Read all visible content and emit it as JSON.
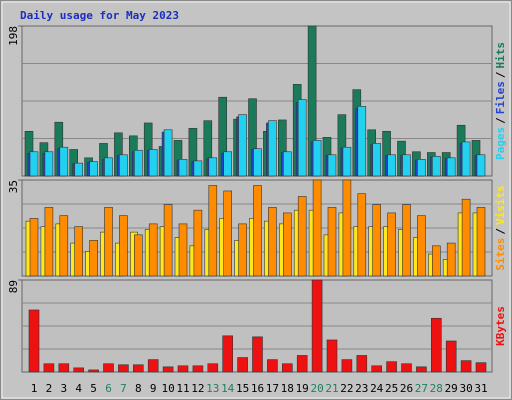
{
  "chart_data": [
    {
      "type": "bar",
      "title": "Daily usage for May 2023",
      "ylim": [
        0,
        198
      ],
      "yticks": [
        198
      ],
      "legend_separator": "/",
      "series": [
        {
          "name": "Pages",
          "color": "#22d0f0",
          "values": [
            32,
            32,
            38,
            17,
            19,
            24,
            28,
            34,
            35,
            61,
            22,
            20,
            24,
            32,
            81,
            36,
            73,
            32,
            101,
            47,
            28,
            38,
            92,
            43,
            28,
            28,
            22,
            26,
            24,
            45,
            28
          ]
        },
        {
          "name": "Files",
          "color": "#2244cc",
          "values": [
            30,
            30,
            36,
            16,
            18,
            22,
            27,
            32,
            34,
            58,
            21,
            19,
            23,
            30,
            78,
            35,
            70,
            31,
            97,
            45,
            27,
            37,
            89,
            41,
            27,
            27,
            21,
            25,
            23,
            43,
            27
          ]
        },
        {
          "name": "Hits",
          "color": "#1b7a5a",
          "values": [
            59,
            44,
            71,
            35,
            24,
            43,
            57,
            53,
            70,
            39,
            47,
            63,
            73,
            104,
            75,
            102,
            59,
            74,
            121,
            198,
            51,
            81,
            114,
            61,
            59,
            46,
            32,
            31,
            31,
            67,
            47
          ]
        }
      ]
    },
    {
      "type": "bar",
      "ylim": [
        0,
        35
      ],
      "yticks": [
        35
      ],
      "legend_separator": "/",
      "series": [
        {
          "name": "Sites",
          "color": "#ff8c00",
          "values": [
            21,
            25,
            22,
            18,
            13,
            25,
            22,
            15,
            19,
            26,
            19,
            24,
            33,
            31,
            19,
            33,
            25,
            23,
            29,
            35,
            25,
            35,
            30,
            26,
            23,
            26,
            22,
            11,
            12,
            28,
            25
          ]
        },
        {
          "name": "Visits",
          "color": "#ffe81a",
          "values": [
            20,
            18,
            19,
            12,
            9,
            16,
            12,
            16,
            17,
            18,
            14,
            11,
            17,
            21,
            13,
            21,
            20,
            19,
            24,
            24,
            15,
            23,
            18,
            18,
            18,
            17,
            14,
            8,
            6,
            23,
            23
          ]
        }
      ]
    },
    {
      "type": "bar",
      "ylim": [
        0,
        89
      ],
      "yticks": [
        89
      ],
      "categories": [
        "1",
        "2",
        "3",
        "4",
        "5",
        "6",
        "7",
        "8",
        "9",
        "10",
        "11",
        "12",
        "13",
        "14",
        "15",
        "16",
        "17",
        "18",
        "19",
        "20",
        "21",
        "22",
        "23",
        "24",
        "25",
        "26",
        "27",
        "28",
        "29",
        "30",
        "31"
      ],
      "category_colors": [
        "#000",
        "#000",
        "#000",
        "#000",
        "#000",
        "#208060",
        "#208060",
        "#000",
        "#000",
        "#000",
        "#000",
        "#000",
        "#208060",
        "#208060",
        "#000",
        "#000",
        "#000",
        "#000",
        "#000",
        "#208060",
        "#208060",
        "#000",
        "#000",
        "#000",
        "#000",
        "#000",
        "#208060",
        "#208060",
        "#000",
        "#000",
        "#000"
      ],
      "series": [
        {
          "name": "KBytes",
          "color": "#ee1111",
          "values": [
            60,
            8,
            8,
            4,
            2,
            8,
            7,
            7,
            12,
            5,
            6,
            6,
            8,
            35,
            14,
            34,
            12,
            8,
            16,
            89,
            31,
            12,
            16,
            6,
            10,
            8,
            5,
            52,
            30,
            11,
            9
          ]
        }
      ]
    }
  ]
}
